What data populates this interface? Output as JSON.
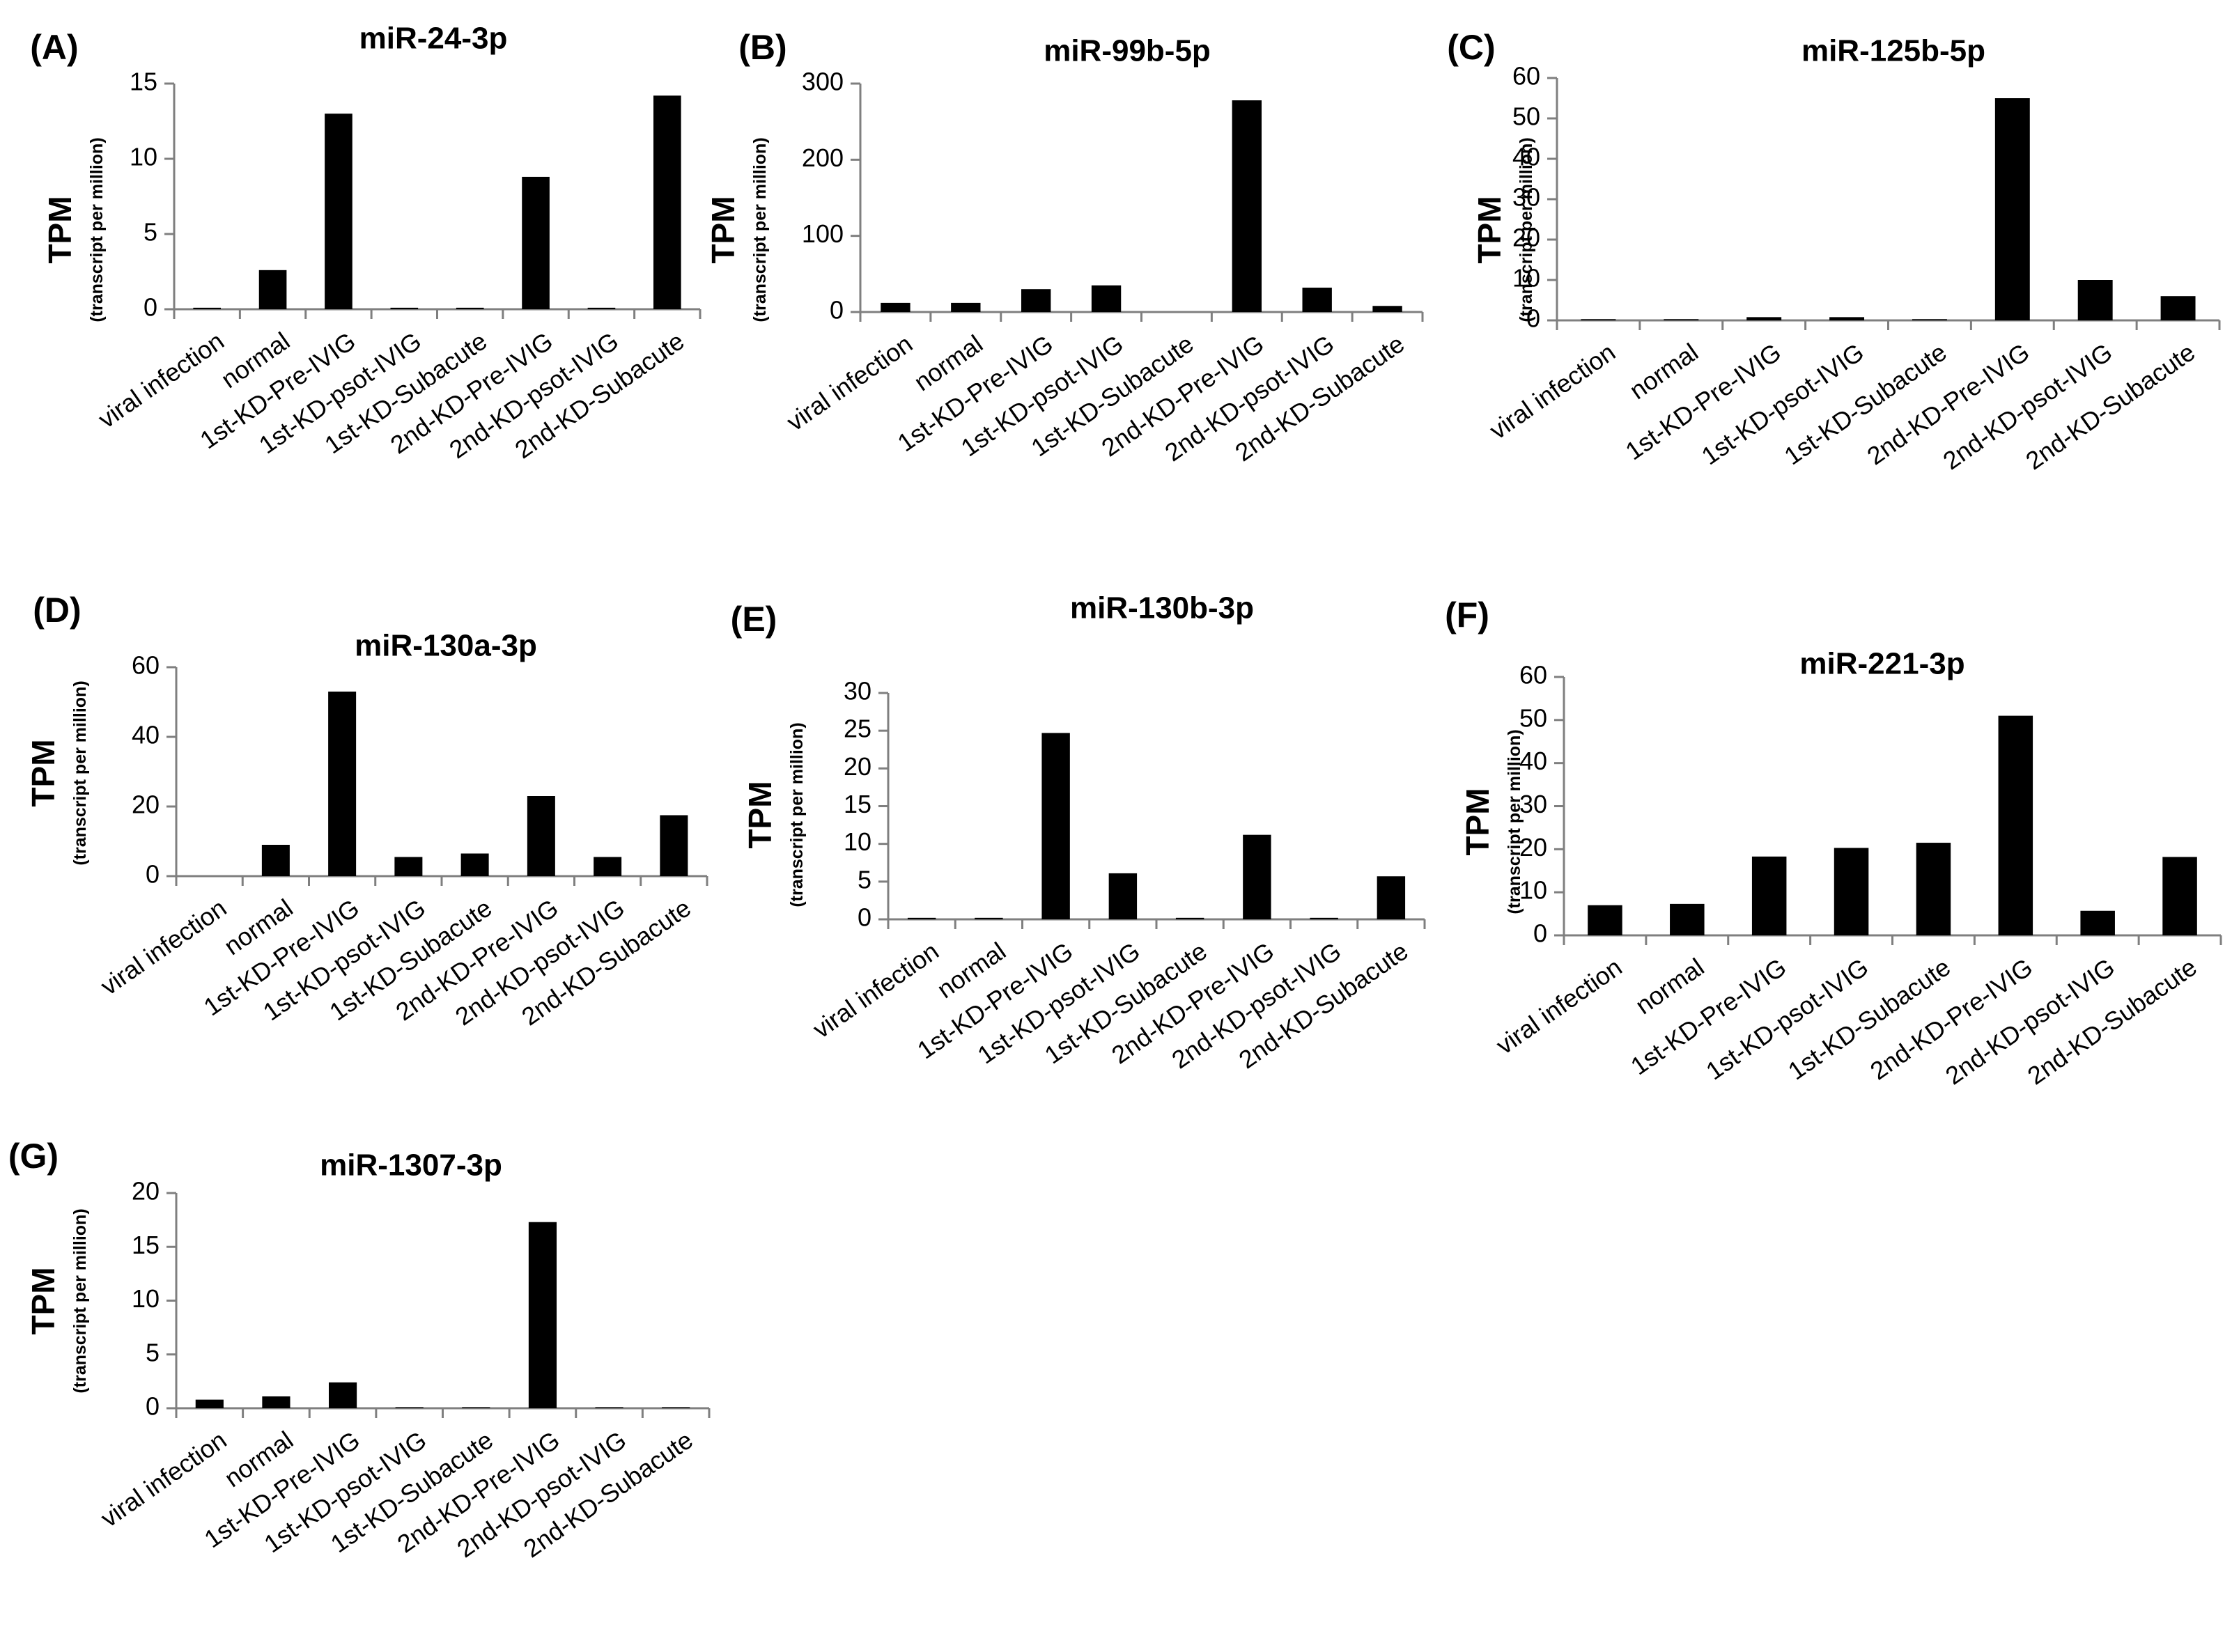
{
  "figure_categories": [
    "viral infection",
    "normal",
    "1st-KD-Pre-IVIG",
    "1st-KD-psot-IVIG",
    "1st-KD-Subacute",
    "2nd-KD-Pre-IVIG",
    "2nd-KD-psot-IVIG",
    "2nd-KD-Subacute"
  ],
  "ylabel": {
    "main": "TPM",
    "sub": "(transcript per million)"
  },
  "chart_data": [
    {
      "panel": "(A)",
      "type": "bar",
      "title": "miR-24-3p",
      "categories": [
        "viral infection",
        "normal",
        "1st-KD-Pre-IVIG",
        "1st-KD-psot-IVIG",
        "1st-KD-Subacute",
        "2nd-KD-Pre-IVIG",
        "2nd-KD-psot-IVIG",
        "2nd-KD-Subacute"
      ],
      "values": [
        0.1,
        2.6,
        13.0,
        0.1,
        0.1,
        8.8,
        0.1,
        14.2
      ],
      "ylim": [
        0,
        15
      ],
      "yticks": [
        0,
        5,
        10,
        15
      ],
      "ylabel": "TPM (transcript per million)"
    },
    {
      "panel": "(B)",
      "type": "bar",
      "title": "miR-99b-5p",
      "categories": [
        "viral infection",
        "normal",
        "1st-KD-Pre-IVIG",
        "1st-KD-psot-IVIG",
        "1st-KD-Subacute",
        "2nd-KD-Pre-IVIG",
        "2nd-KD-psot-IVIG",
        "2nd-KD-Subacute"
      ],
      "values": [
        12,
        12,
        30,
        35,
        0,
        278,
        32,
        8
      ],
      "ylim": [
        0,
        300
      ],
      "yticks": [
        0,
        100,
        200,
        300
      ],
      "ylabel": "TPM (transcript per million)"
    },
    {
      "panel": "(C)",
      "type": "bar",
      "title": "miR-125b-5p",
      "categories": [
        "viral infection",
        "normal",
        "1st-KD-Pre-IVIG",
        "1st-KD-psot-IVIG",
        "1st-KD-Subacute",
        "2nd-KD-Pre-IVIG",
        "2nd-KD-psot-IVIG",
        "2nd-KD-Subacute"
      ],
      "values": [
        0.3,
        0.3,
        0.8,
        0.8,
        0.3,
        55,
        10,
        6
      ],
      "ylim": [
        0,
        60
      ],
      "yticks": [
        0,
        10,
        20,
        30,
        40,
        50,
        60
      ],
      "ylabel": "TPM (transcript per million)"
    },
    {
      "panel": "(D)",
      "type": "bar",
      "title": "miR-130a-3p",
      "categories": [
        "viral infection",
        "normal",
        "1st-KD-Pre-IVIG",
        "1st-KD-psot-IVIG",
        "1st-KD-Subacute",
        "2nd-KD-Pre-IVIG",
        "2nd-KD-psot-IVIG",
        "2nd-KD-Subacute"
      ],
      "values": [
        0,
        9,
        53,
        5.5,
        6.5,
        23,
        5.5,
        17.5
      ],
      "ylim": [
        0,
        60
      ],
      "yticks": [
        0,
        20,
        40,
        60
      ],
      "ylabel": "TPM (transcript per million)"
    },
    {
      "panel": "(E)",
      "type": "bar",
      "title": "miR-130b-3p",
      "categories": [
        "viral infection",
        "normal",
        "1st-KD-Pre-IVIG",
        "1st-KD-psot-IVIG",
        "1st-KD-Subacute",
        "2nd-KD-Pre-IVIG",
        "2nd-KD-psot-IVIG",
        "2nd-KD-Subacute"
      ],
      "values": [
        0.2,
        0.2,
        24.7,
        6.1,
        0.2,
        11.2,
        0.2,
        5.7
      ],
      "ylim": [
        0,
        30
      ],
      "yticks": [
        0,
        5,
        10,
        15,
        20,
        25,
        30
      ],
      "ylabel": "TPM (transcript per million)"
    },
    {
      "panel": "(F)",
      "type": "bar",
      "title": "miR-221-3p",
      "categories": [
        "viral infection",
        "normal",
        "1st-KD-Pre-IVIG",
        "1st-KD-psot-IVIG",
        "1st-KD-Subacute",
        "2nd-KD-Pre-IVIG",
        "2nd-KD-psot-IVIG",
        "2nd-KD-Subacute"
      ],
      "values": [
        7,
        7.3,
        18.3,
        20.3,
        21.5,
        51,
        5.7,
        18.2
      ],
      "ylim": [
        0,
        60
      ],
      "yticks": [
        0,
        10,
        20,
        30,
        40,
        50,
        60
      ],
      "ylabel": "TPM (transcript per million)"
    },
    {
      "panel": "(G)",
      "type": "bar",
      "title": "miR-1307-3p",
      "categories": [
        "viral infection",
        "normal",
        "1st-KD-Pre-IVIG",
        "1st-KD-psot-IVIG",
        "1st-KD-Subacute",
        "2nd-KD-Pre-IVIG",
        "2nd-KD-psot-IVIG",
        "2nd-KD-Subacute"
      ],
      "values": [
        0.8,
        1.1,
        2.4,
        0.1,
        0.1,
        17.3,
        0.1,
        0.1
      ],
      "ylim": [
        0,
        20
      ],
      "yticks": [
        0,
        5,
        10,
        15,
        20
      ],
      "ylabel": "TPM (transcript per million)"
    }
  ]
}
